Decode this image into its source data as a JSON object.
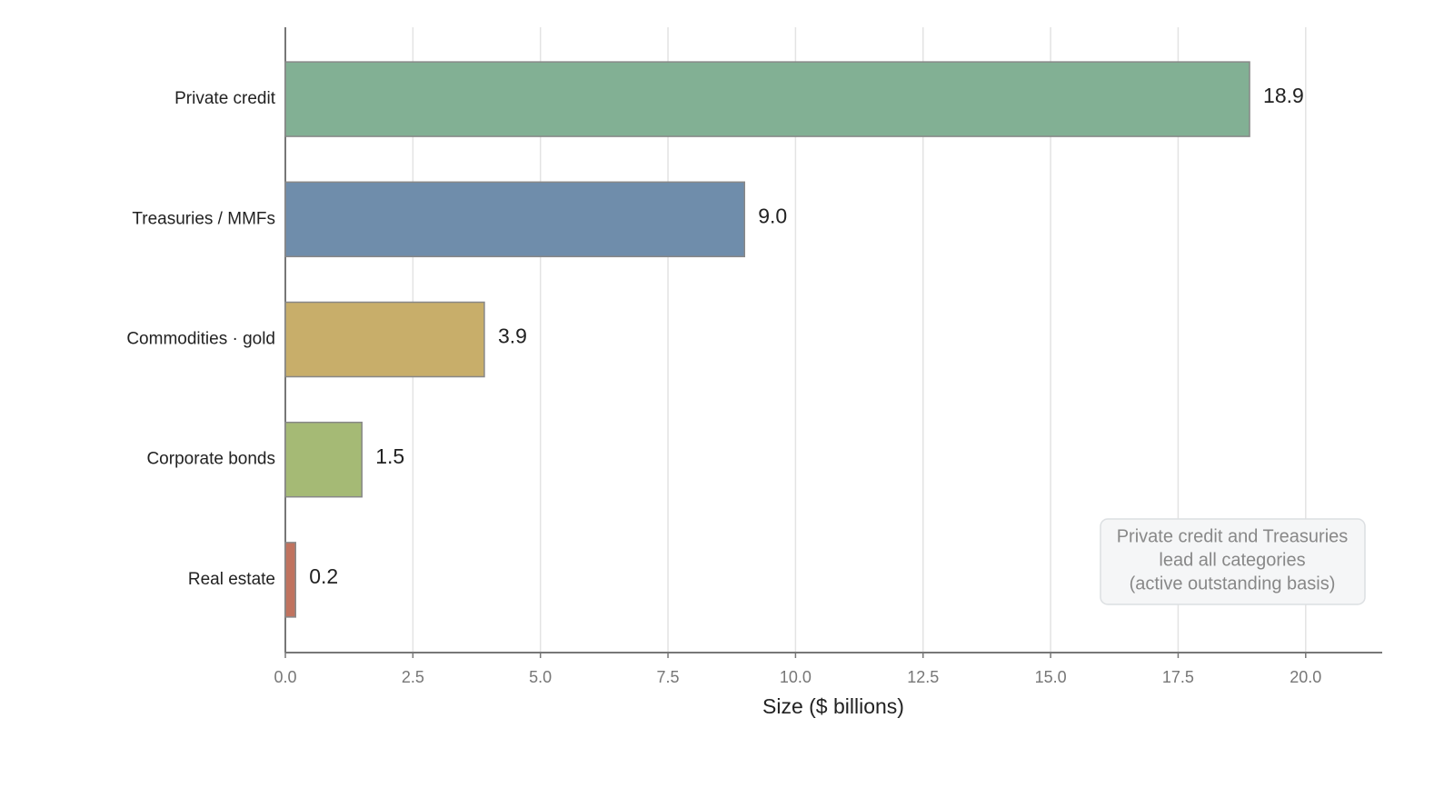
{
  "chart_data": {
    "type": "bar",
    "orientation": "horizontal",
    "x_label": "Size ($ billions)",
    "categories": [
      "Private credit",
      "Treasuries / MMFs",
      "Commodities · gold",
      "Corporate bonds",
      "Real estate"
    ],
    "values": [
      18.9,
      9.0,
      3.9,
      1.5,
      0.2
    ],
    "value_labels": [
      "18.9",
      "9.0",
      "3.9",
      "1.5",
      "0.2"
    ],
    "colors": [
      "#82b094",
      "#6f8dab",
      "#c8ae6a",
      "#a5ba75",
      "#c0735f"
    ],
    "xlim": [
      0,
      21.5
    ],
    "xticks": [
      {
        "value": 0,
        "label": "0.0"
      },
      2.5,
      {
        "value": 5,
        "label": "5.0"
      },
      7.5,
      {
        "value": 10,
        "label": "10.0"
      },
      12.5,
      {
        "value": 15,
        "label": "15.0"
      },
      17.5,
      {
        "value": 20,
        "label": "20.0"
      }
    ],
    "grid": true,
    "annotation": [
      "Private credit and Treasuries",
      "lead all categories",
      "(active outstanding basis)"
    ]
  }
}
